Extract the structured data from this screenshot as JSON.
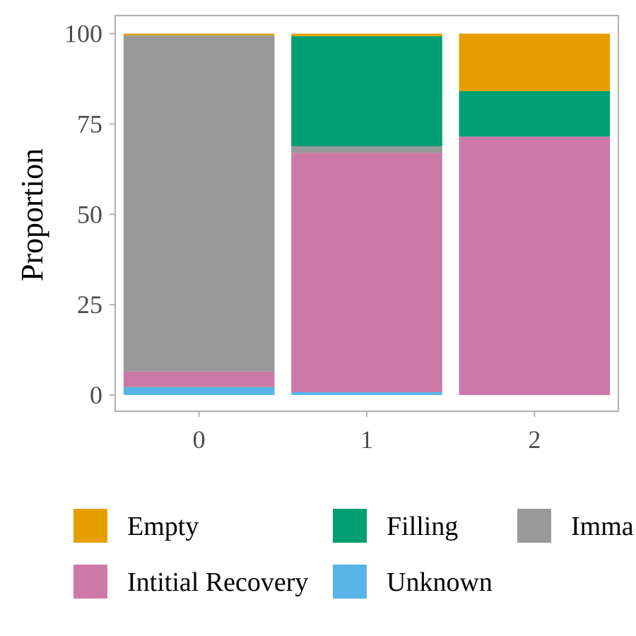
{
  "chart_data": {
    "type": "bar",
    "stacked": true,
    "ylabel": "Proportion",
    "xlabel": "",
    "categories": [
      "0",
      "1",
      "2"
    ],
    "yticks": [
      0,
      25,
      50,
      75,
      100
    ],
    "ylim": [
      -4.5,
      105
    ],
    "grid": false,
    "legend_position": "bottom",
    "series": [
      {
        "name": "Unknown",
        "color": "#56B4E9",
        "values": [
          2.2,
          0.8,
          0.0
        ]
      },
      {
        "name": "Intitial Recovery",
        "color": "#CC79A7",
        "values": [
          4.3,
          66.2,
          71.5
        ]
      },
      {
        "name": "Imma",
        "color": "#999999",
        "values": [
          93.0,
          1.8,
          0.0
        ]
      },
      {
        "name": "Filling",
        "color": "#009E73",
        "values": [
          0.0,
          30.5,
          12.6
        ]
      },
      {
        "name": "Empty",
        "color": "#E69F00",
        "values": [
          0.5,
          0.7,
          15.9
        ]
      }
    ],
    "legend_order": [
      "Empty",
      "Filling",
      "Imma",
      "Intitial Recovery",
      "Unknown"
    ]
  }
}
